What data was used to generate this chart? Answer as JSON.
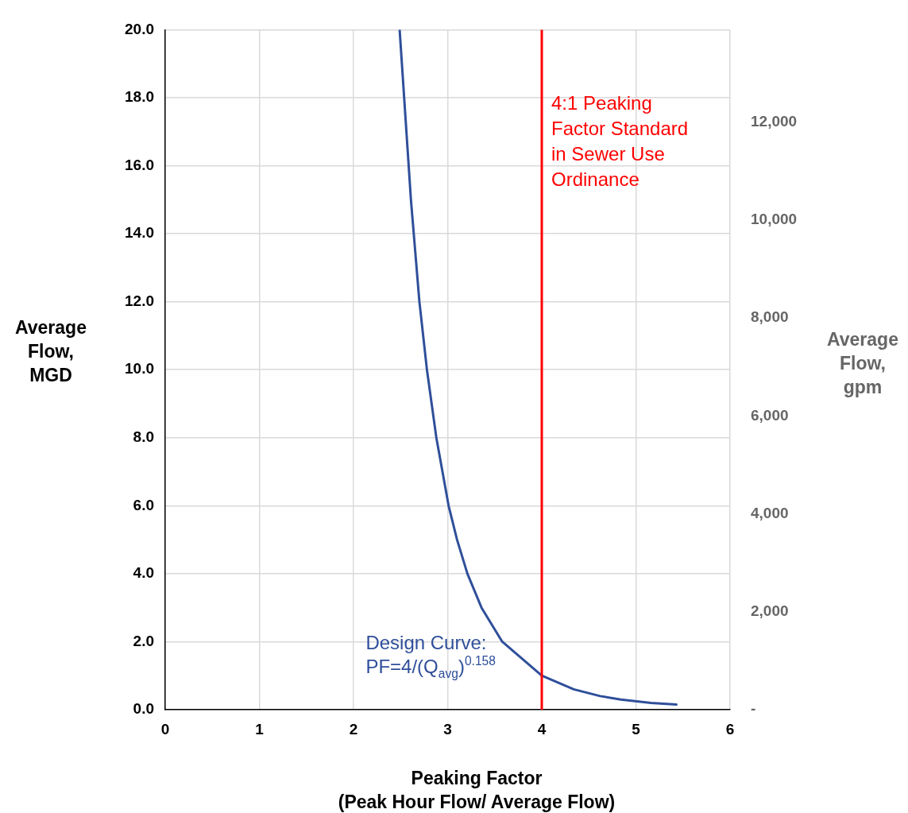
{
  "chart_data": {
    "type": "line",
    "xlabel": "Peaking Factor\n(Peak Hour Flow/ Average Flow)",
    "ylabel": "Average Flow, MGD",
    "y2label": "Average Flow, gpm",
    "xlim": [
      0,
      6
    ],
    "xticks": [
      0,
      1,
      2,
      3,
      4,
      5,
      6
    ],
    "ylim": [
      0,
      20
    ],
    "yticks": [
      {
        "value": 0,
        "label": "0.0"
      },
      {
        "value": 2,
        "label": "2.0"
      },
      {
        "value": 4,
        "label": "4.0"
      },
      {
        "value": 6,
        "label": "6.0"
      },
      {
        "value": 8,
        "label": "8.0"
      },
      {
        "value": 10,
        "label": "10.0"
      },
      {
        "value": 12,
        "label": "12.0"
      },
      {
        "value": 14,
        "label": "14.0"
      },
      {
        "value": 16,
        "label": "16.0"
      },
      {
        "value": 18,
        "label": "18.0"
      },
      {
        "value": 20,
        "label": "20.0"
      }
    ],
    "y2lim": [
      0,
      13889
    ],
    "y2ticks": [
      {
        "value": 0,
        "label": "-"
      },
      {
        "value": 2000,
        "label": "2,000"
      },
      {
        "value": 4000,
        "label": "4,000"
      },
      {
        "value": 6000,
        "label": "6,000"
      },
      {
        "value": 8000,
        "label": "8,000"
      },
      {
        "value": 10000,
        "label": "10,000"
      },
      {
        "value": 12000,
        "label": "12,000"
      }
    ],
    "grid": true,
    "legend": false,
    "marker": "none",
    "line_style": "solid",
    "series": [
      {
        "color": "#2f4f9a",
        "x": [
          2.49,
          2.61,
          2.7,
          2.78,
          2.88,
          3.01,
          3.1,
          3.21,
          3.36,
          3.58,
          4.0,
          4.34,
          4.62,
          4.84,
          5.16,
          5.43
        ],
        "values": [
          20,
          15,
          12,
          10,
          8,
          6,
          5,
          4,
          3,
          2,
          1,
          0.6,
          0.4,
          0.3,
          0.2,
          0.15
        ]
      }
    ],
    "ref_lines": [
      {
        "axis": "x",
        "value": 4,
        "label": "4:1 Peaking Factor Standard in Sewer Use Ordinance",
        "color": "#ff0000"
      }
    ],
    "annotations": [
      "Design Curve: PF=4/(Q$_{avg}$)$^{0.158}$"
    ]
  }
}
